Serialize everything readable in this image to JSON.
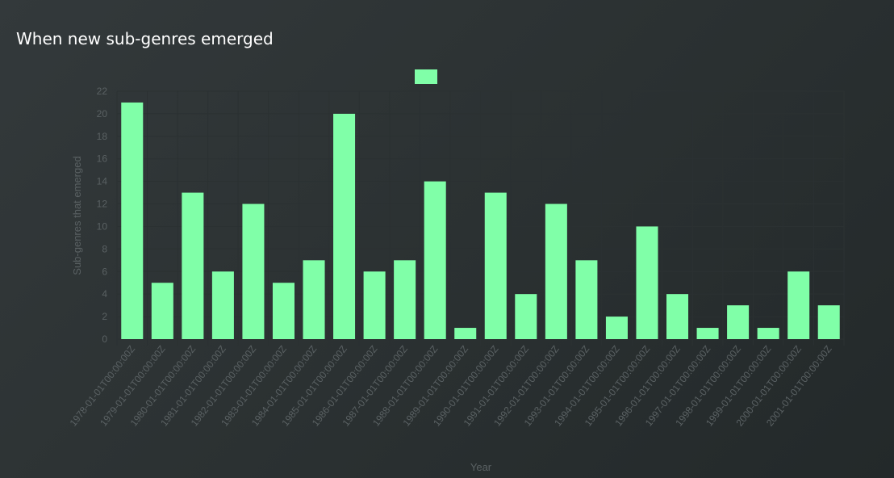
{
  "title": "When new sub-genres emerged",
  "chart_data": {
    "type": "bar",
    "title": "When new sub-genres emerged",
    "xlabel": "Year",
    "ylabel": "Sub-genres that emerged",
    "ylim": [
      0,
      22
    ],
    "yticks": [
      0,
      2,
      4,
      6,
      8,
      10,
      12,
      14,
      16,
      18,
      20,
      22
    ],
    "grid": true,
    "legend": {
      "placement": "top-center",
      "entries": [
        ""
      ]
    },
    "bar_color": "#80ffa8",
    "categories": [
      "1978-01-01T00:00:00Z",
      "1979-01-01T00:00:00Z",
      "1980-01-01T00:00:00Z",
      "1981-01-01T00:00:00Z",
      "1982-01-01T00:00:00Z",
      "1983-01-01T00:00:00Z",
      "1984-01-01T00:00:00Z",
      "1985-01-01T00:00:00Z",
      "1986-01-01T00:00:00Z",
      "1987-01-01T00:00:00Z",
      "1988-01-01T00:00:00Z",
      "1989-01-01T00:00:00Z",
      "1990-01-01T00:00:00Z",
      "1991-01-01T00:00:00Z",
      "1992-01-01T00:00:00Z",
      "1993-01-01T00:00:00Z",
      "1994-01-01T00:00:00Z",
      "1995-01-01T00:00:00Z",
      "1996-01-01T00:00:00Z",
      "1997-01-01T00:00:00Z",
      "1998-01-01T00:00:00Z",
      "1999-01-01T00:00:00Z",
      "2000-01-01T00:00:00Z",
      "2001-01-01T00:00:00Z"
    ],
    "values": [
      21,
      5,
      13,
      6,
      12,
      5,
      7,
      20,
      6,
      7,
      14,
      1,
      13,
      4,
      12,
      7,
      2,
      10,
      4,
      1,
      3,
      1,
      6,
      3
    ]
  }
}
